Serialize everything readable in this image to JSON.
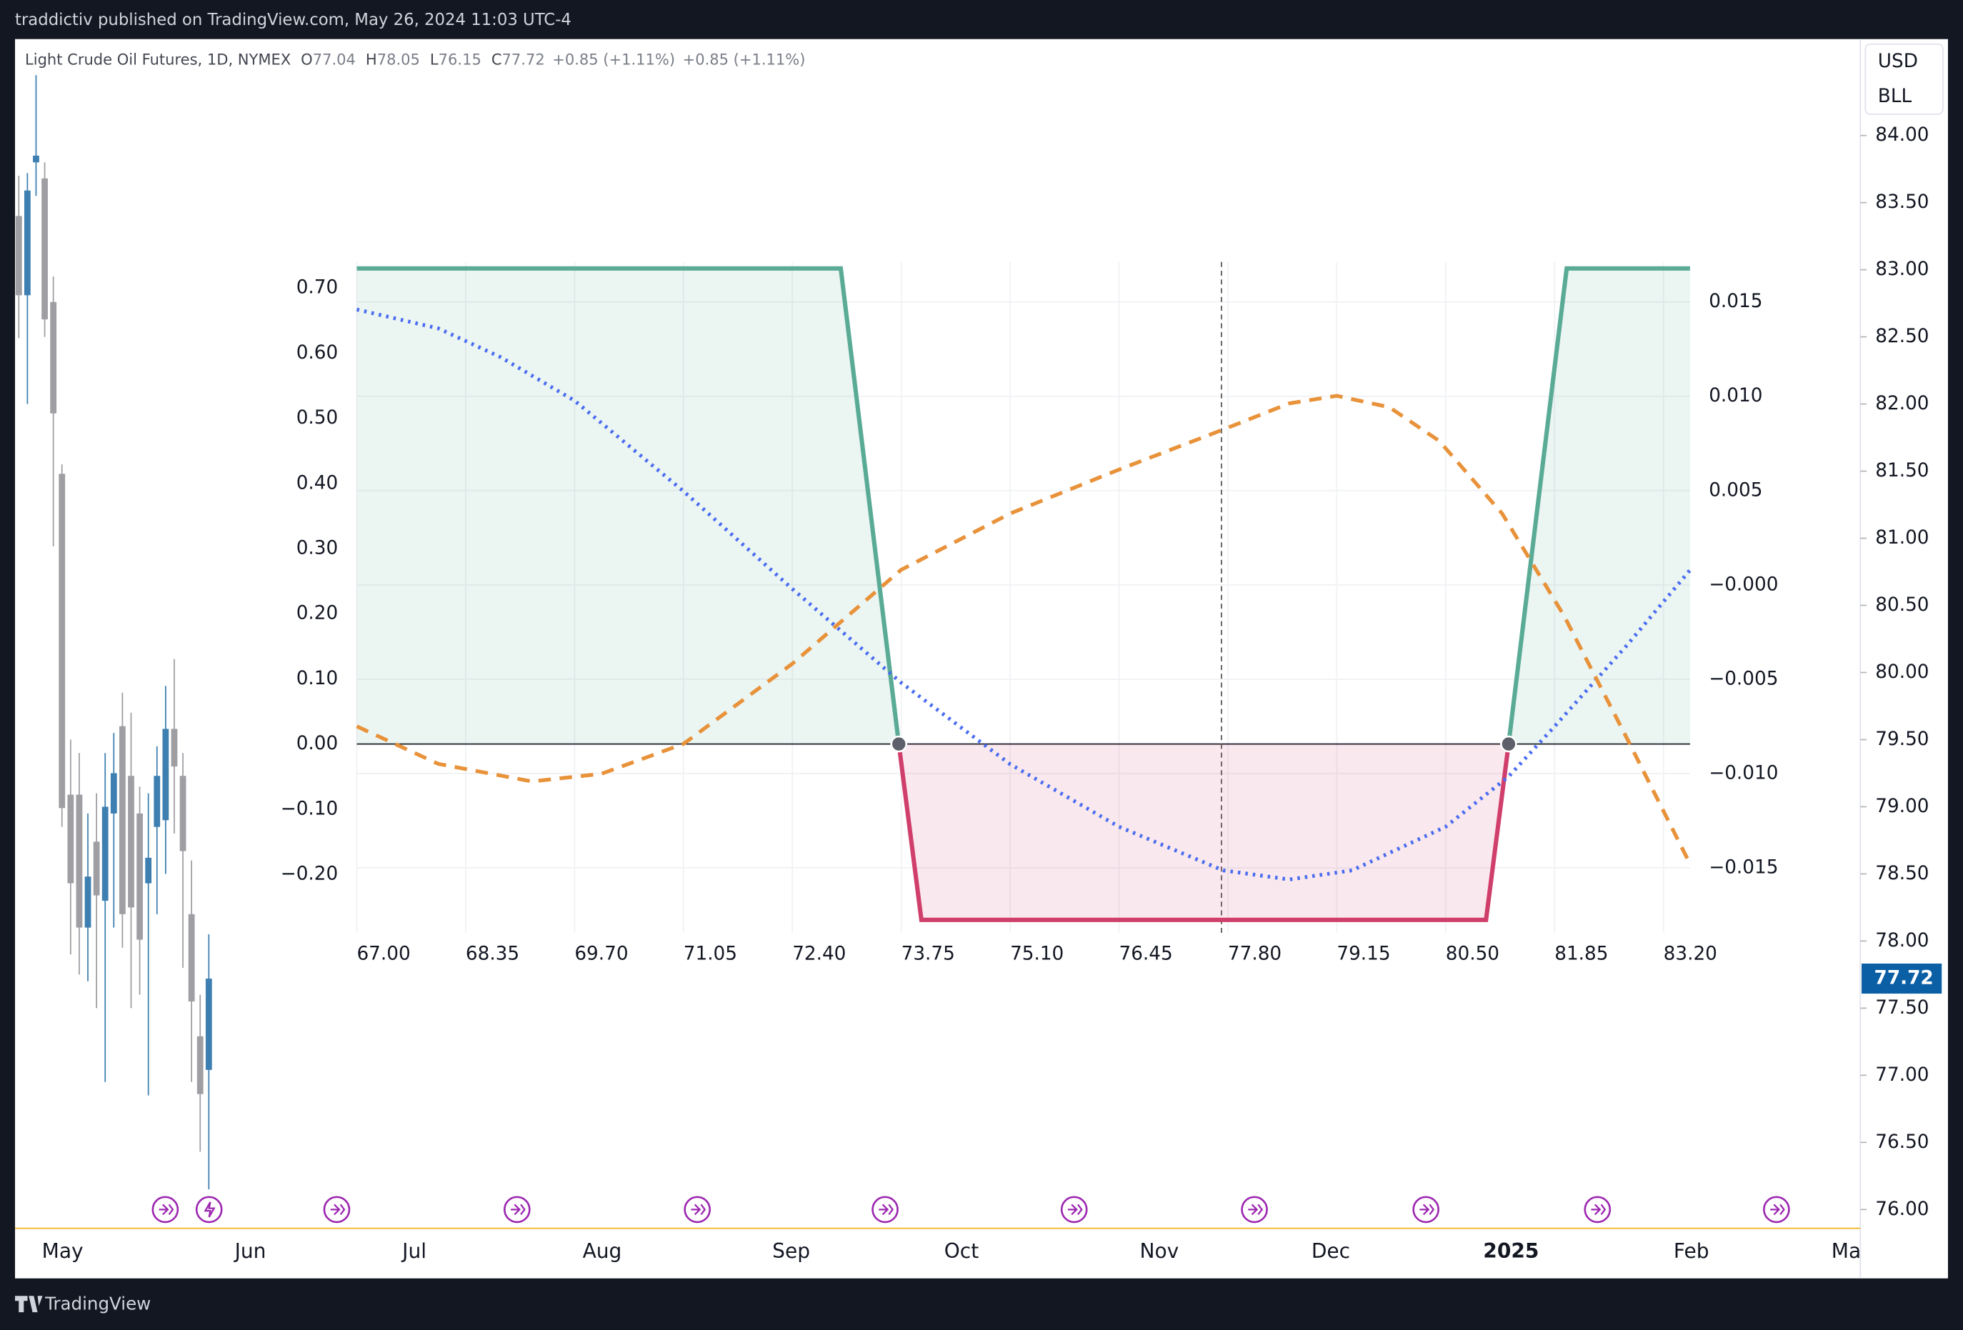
{
  "header": {
    "publisher": "traddictiv published on TradingView.com, May 26, 2024 11:03 UTC-4"
  },
  "footer": {
    "brand": "TradingView"
  },
  "chart_data": [
    {
      "type": "candlestick",
      "title": "Light Crude Oil Futures, 1D, NYMEX",
      "ohlc_legend": [
        {
          "label": "O",
          "value": 77.04
        },
        {
          "label": "H",
          "value": 78.05
        },
        {
          "label": "L",
          "value": 76.15
        },
        {
          "label": "C",
          "value": 77.72
        }
      ],
      "change_labels": [
        "+0.85 (+1.11%)",
        "+0.85 (+1.11%)"
      ],
      "currency": "USD",
      "unit": "BLL",
      "last_price": 77.72,
      "up_color": "#3d7fb0",
      "down_color": "#9e9ea3",
      "open": [
        83.4,
        82.81,
        83.8,
        83.68,
        82.76,
        81.48,
        79.09,
        79.09,
        78.1,
        78.74,
        78.3,
        78.95,
        79.6,
        79.23,
        78.95,
        78.43,
        78.85,
        78.9,
        79.58,
        79.23,
        78.2,
        77.29,
        77.04
      ],
      "high": [
        83.7,
        83.72,
        84.45,
        83.8,
        82.95,
        81.55,
        79.5,
        79.4,
        78.95,
        79.1,
        79.4,
        79.55,
        79.85,
        79.7,
        79.15,
        79.1,
        79.45,
        79.9,
        80.1,
        79.4,
        78.6,
        77.6,
        78.05
      ],
      "low": [
        82.49,
        82.0,
        83.55,
        82.5,
        80.94,
        78.85,
        77.9,
        77.75,
        77.7,
        77.5,
        76.95,
        78.1,
        77.95,
        77.5,
        77.6,
        76.85,
        78.2,
        78.5,
        78.8,
        77.8,
        76.95,
        76.43,
        76.15
      ],
      "close": [
        82.81,
        83.59,
        83.85,
        82.63,
        81.93,
        78.99,
        78.43,
        78.1,
        78.48,
        78.34,
        79.0,
        79.25,
        78.2,
        78.25,
        78.01,
        78.62,
        79.23,
        79.58,
        79.3,
        78.67,
        77.55,
        76.86,
        77.72
      ],
      "ylim": [
        75.86,
        84.718
      ],
      "yticks": [
        {
          "value": 76,
          "label": "76.00"
        },
        {
          "value": 76.5,
          "label": "76.50"
        },
        {
          "value": 77,
          "label": "77.00"
        },
        {
          "value": 77.5,
          "label": "77.50"
        },
        {
          "value": 78,
          "label": "78.00"
        },
        {
          "value": 78.5,
          "label": "78.50"
        },
        {
          "value": 79,
          "label": "79.00"
        },
        {
          "value": 79.5,
          "label": "79.50"
        },
        {
          "value": 80,
          "label": "80.00"
        },
        {
          "value": 80.5,
          "label": "80.50"
        },
        {
          "value": 81,
          "label": "81.00"
        },
        {
          "value": 81.5,
          "label": "81.50"
        },
        {
          "value": 82,
          "label": "82.00"
        },
        {
          "value": 82.5,
          "label": "82.50"
        },
        {
          "value": 83,
          "label": "83.00"
        },
        {
          "value": 83.5,
          "label": "83.50"
        },
        {
          "value": 84,
          "label": "84.00"
        }
      ],
      "time_labels": [
        "May",
        "Jun",
        "Jul",
        "Aug",
        "Sep",
        "Oct",
        "Nov",
        "Dec",
        "2025",
        "Feb",
        "Mar"
      ]
    },
    {
      "type": "line",
      "grid": true,
      "current_price": 77.72,
      "xlim": [
        67,
        83.53
      ],
      "xticks": [
        {
          "value": 67,
          "label": "67.00"
        },
        68.35,
        {
          "value": 69.7,
          "label": "69.70"
        },
        71.05,
        {
          "value": 72.4,
          "label": "72.40"
        },
        73.75,
        {
          "value": 75.1,
          "label": "75.10"
        },
        76.45,
        {
          "value": 77.8,
          "label": "77.80"
        },
        79.15,
        {
          "value": 80.5,
          "label": "80.50"
        },
        81.85,
        {
          "value": 83.2,
          "label": "83.20"
        }
      ],
      "ylim": [
        -0.29,
        0.74
      ],
      "yticks": [
        {
          "value": -0.2,
          "label": "−0.20"
        },
        {
          "value": -0.1,
          "label": "−0.10"
        },
        {
          "value": 0,
          "label": "0.00"
        },
        {
          "value": 0.1,
          "label": "0.10"
        },
        {
          "value": 0.2,
          "label": "0.20"
        },
        {
          "value": 0.3,
          "label": "0.30"
        },
        {
          "value": 0.4,
          "label": "0.40"
        },
        {
          "value": 0.5,
          "label": "0.50"
        },
        {
          "value": 0.6,
          "label": "0.60"
        },
        {
          "value": 0.7,
          "label": "0.70"
        }
      ],
      "y2lim": [
        -0.01845,
        0.01712
      ],
      "y2ticks": [
        {
          "value": -0.015,
          "label": "−0.015"
        },
        {
          "value": -0.01,
          "label": "−0.010"
        },
        {
          "value": -0.005,
          "label": "−0.005"
        },
        {
          "value": 0,
          "label": "−0.000"
        },
        0.005,
        {
          "value": 0.01,
          "label": "0.010"
        },
        0.015
      ],
      "series": [
        {
          "color": "#5aab96",
          "negative_color": "#d03f6b",
          "fill": true,
          "x": [
            67,
            73.0,
            73.72,
            74.0,
            81.0,
            81.28,
            82.0,
            83.53
          ],
          "values": [
            0.73,
            0.73,
            0,
            -0.27,
            -0.27,
            0,
            0.73,
            0.73
          ]
        },
        {
          "color": "#4a6cf0",
          "dash": "dotted",
          "x": [
            67,
            68.01,
            68.78,
            69.7,
            71.05,
            72.4,
            73.75,
            75.1,
            76.45,
            77.74,
            78.56,
            79.34,
            80.5,
            81.28,
            81.85,
            82.75,
            83.53
          ],
          "values": [
            0.667,
            0.638,
            0.594,
            0.527,
            0.388,
            0.238,
            0.094,
            -0.031,
            -0.127,
            -0.194,
            -0.208,
            -0.194,
            -0.127,
            -0.05,
            0.027,
            0.152,
            0.267
          ]
        },
        {
          "color": "#e8923a",
          "dash": "dashed",
          "axis": "y2",
          "x": [
            67,
            68.01,
            69.17,
            70.03,
            71.05,
            72.4,
            73.75,
            75.1,
            76.45,
            77.74,
            78.56,
            79.15,
            79.8,
            80.42,
            81.2,
            81.97,
            82.75,
            83.53
          ],
          "values": [
            -0.0075,
            -0.00949,
            -0.01042,
            -0.01002,
            -0.00843,
            -0.00418,
            0.0008,
            0.00378,
            0.00611,
            0.00823,
            0.00962,
            0.01002,
            0.00942,
            0.00763,
            0.00378,
            -0.00166,
            -0.00816,
            -0.0148
          ]
        }
      ],
      "breakeven": {
        "x": [
          73.72,
          81.28
        ],
        "values": [
          0,
          0
        ]
      }
    }
  ]
}
